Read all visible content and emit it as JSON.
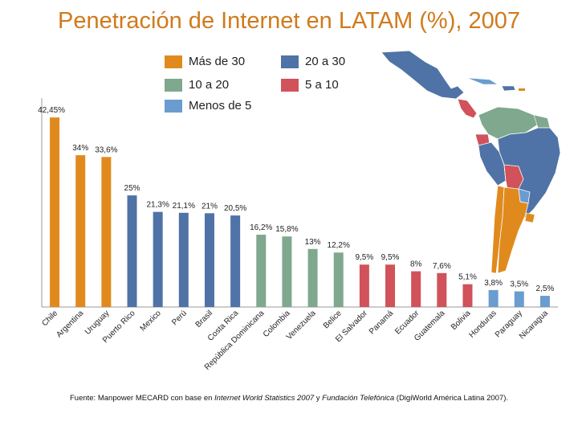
{
  "title": "Penetración de Internet en LATAM (%), 2007",
  "colors": {
    "title": "#d07a1c",
    "cat30": "#e08a1e",
    "cat20_30": "#4f73a6",
    "cat10_20": "#7fa88e",
    "cat5_10": "#d1525a",
    "catLow": "#6a9ccf"
  },
  "legend": [
    {
      "label": "Más de 30",
      "color": "#e08a1e"
    },
    {
      "label": "20 a 30",
      "color": "#4f73a6"
    },
    {
      "label": "10 a 20",
      "color": "#7fa88e"
    },
    {
      "label": "5 a 10",
      "color": "#d1525a"
    },
    {
      "label": "Menos de 5",
      "color": "#6a9ccf"
    }
  ],
  "chart_data": {
    "type": "bar",
    "title": "Penetración de Internet en LATAM (%), 2007",
    "categories": [
      "Chile",
      "Argentina",
      "Uruguay",
      "Puerto Rico",
      "Mexico",
      "Perú",
      "Brasil",
      "Costa Rica",
      "República Dominicana",
      "Colombia",
      "Venezuela",
      "Belice",
      "El Salvador",
      "Panamá",
      "Ecuador",
      "Guatemala",
      "Bolivia",
      "Honduras",
      "Paraguay",
      "Nicaragua"
    ],
    "values": [
      42.45,
      34,
      33.6,
      25,
      21.3,
      21.1,
      21,
      20.5,
      16.2,
      15.8,
      13,
      12.2,
      9.5,
      9.5,
      8,
      7.6,
      5.1,
      3.8,
      3.5,
      2.5
    ],
    "value_labels": [
      "42,45%",
      "34%",
      "33,6%",
      "25%",
      "21,3%",
      "21,1%",
      "21%",
      "20,5%",
      "16,2%",
      "15,8%",
      "13%",
      "12,2%",
      "9,5%",
      "9,5%",
      "8%",
      "7,6%",
      "5,1%",
      "3,8%",
      "3,5%",
      "2,5%"
    ],
    "color_groups": [
      "cat30",
      "cat30",
      "cat30",
      "cat20_30",
      "cat20_30",
      "cat20_30",
      "cat20_30",
      "cat20_30",
      "cat10_20",
      "cat10_20",
      "cat10_20",
      "cat10_20",
      "cat5_10",
      "cat5_10",
      "cat5_10",
      "cat5_10",
      "cat5_10",
      "catLow",
      "catLow",
      "catLow"
    ],
    "ylim": [
      0,
      45
    ],
    "xlabel": "",
    "ylabel": "",
    "grid": false
  },
  "source": {
    "prefix": "Fuente: Manpower MECARD con base en ",
    "italic1": "Internet World Statistics 2007",
    "mid": " y ",
    "italic2": "Fundación Telefónica",
    "suffix": " (DigiWorld América Latina 2007)."
  }
}
